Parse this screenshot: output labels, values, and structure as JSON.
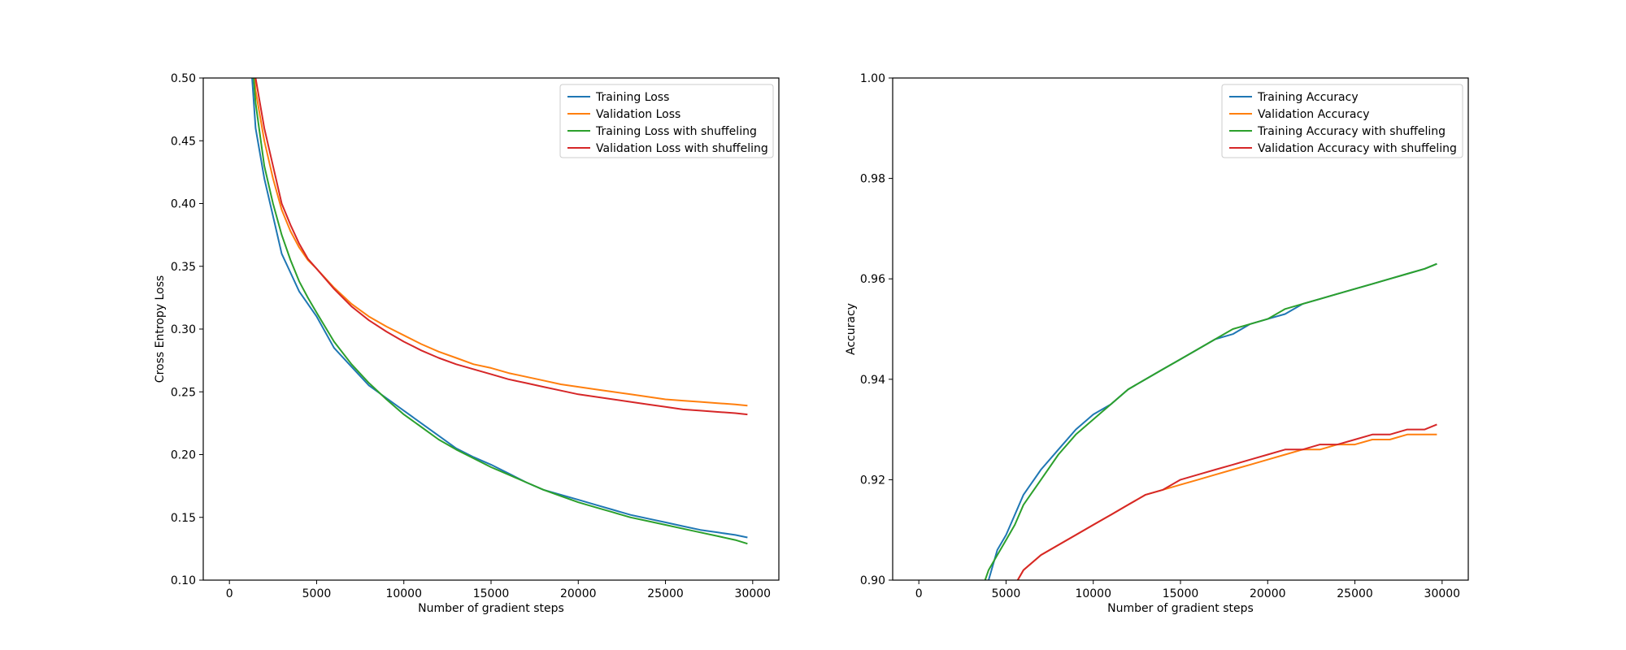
{
  "chart_data": [
    {
      "type": "line",
      "xlabel": "Number of gradient steps",
      "ylabel": "Cross Entropy Loss",
      "xlim": [
        -1500,
        31500
      ],
      "ylim": [
        0.1,
        0.5
      ],
      "xticks": [
        0,
        5000,
        10000,
        15000,
        20000,
        25000,
        30000
      ],
      "yticks": [
        0.1,
        0.15,
        0.2,
        0.25,
        0.3,
        0.35,
        0.4,
        0.45,
        0.5
      ],
      "legend_position": "top-right",
      "grid": false,
      "series": [
        {
          "name": "Training Loss",
          "color": "#1f77b4",
          "x": [
            1000,
            1500,
            2000,
            2500,
            3000,
            3500,
            4000,
            4500,
            5000,
            6000,
            7000,
            8000,
            9000,
            10000,
            11000,
            12000,
            13000,
            14000,
            15000,
            16000,
            17000,
            18000,
            19000,
            20000,
            21000,
            22000,
            23000,
            24000,
            25000,
            26000,
            27000,
            28000,
            29000,
            29700
          ],
          "y": [
            0.56,
            0.46,
            0.42,
            0.39,
            0.36,
            0.345,
            0.33,
            0.32,
            0.31,
            0.285,
            0.27,
            0.255,
            0.245,
            0.235,
            0.225,
            0.215,
            0.205,
            0.198,
            0.192,
            0.185,
            0.178,
            0.172,
            0.168,
            0.164,
            0.16,
            0.156,
            0.152,
            0.149,
            0.146,
            0.143,
            0.14,
            0.138,
            0.136,
            0.134
          ]
        },
        {
          "name": "Validation Loss",
          "color": "#ff7f0e",
          "x": [
            1000,
            1500,
            2000,
            2500,
            3000,
            3500,
            4000,
            4500,
            5000,
            6000,
            7000,
            8000,
            9000,
            10000,
            11000,
            12000,
            13000,
            14000,
            15000,
            16000,
            17000,
            18000,
            19000,
            20000,
            21000,
            22000,
            23000,
            24000,
            25000,
            26000,
            27000,
            28000,
            29000,
            29700
          ],
          "y": [
            0.58,
            0.49,
            0.45,
            0.42,
            0.395,
            0.378,
            0.365,
            0.355,
            0.348,
            0.333,
            0.32,
            0.31,
            0.302,
            0.295,
            0.288,
            0.282,
            0.277,
            0.272,
            0.269,
            0.265,
            0.262,
            0.259,
            0.256,
            0.254,
            0.252,
            0.25,
            0.248,
            0.246,
            0.244,
            0.243,
            0.242,
            0.241,
            0.24,
            0.239
          ]
        },
        {
          "name": "Training Loss with shuffeling",
          "color": "#2ca02c",
          "x": [
            1000,
            1500,
            2000,
            2500,
            3000,
            3500,
            4000,
            4500,
            5000,
            6000,
            7000,
            8000,
            9000,
            10000,
            11000,
            12000,
            13000,
            14000,
            15000,
            16000,
            17000,
            18000,
            19000,
            20000,
            21000,
            22000,
            23000,
            24000,
            25000,
            26000,
            27000,
            28000,
            29000,
            29700
          ],
          "y": [
            0.57,
            0.48,
            0.43,
            0.4,
            0.375,
            0.355,
            0.338,
            0.325,
            0.313,
            0.29,
            0.272,
            0.257,
            0.244,
            0.232,
            0.222,
            0.212,
            0.204,
            0.197,
            0.19,
            0.184,
            0.178,
            0.172,
            0.167,
            0.162,
            0.158,
            0.154,
            0.15,
            0.147,
            0.144,
            0.141,
            0.138,
            0.135,
            0.132,
            0.129
          ]
        },
        {
          "name": "Validation Loss with shuffeling",
          "color": "#d62728",
          "x": [
            1000,
            1500,
            2000,
            2500,
            3000,
            3500,
            4000,
            4500,
            5000,
            6000,
            7000,
            8000,
            9000,
            10000,
            11000,
            12000,
            13000,
            14000,
            15000,
            16000,
            17000,
            18000,
            19000,
            20000,
            21000,
            22000,
            23000,
            24000,
            25000,
            26000,
            27000,
            28000,
            29000,
            29700
          ],
          "y": [
            0.59,
            0.5,
            0.46,
            0.43,
            0.4,
            0.383,
            0.368,
            0.356,
            0.348,
            0.332,
            0.318,
            0.307,
            0.298,
            0.29,
            0.283,
            0.277,
            0.272,
            0.268,
            0.264,
            0.26,
            0.257,
            0.254,
            0.251,
            0.248,
            0.246,
            0.244,
            0.242,
            0.24,
            0.238,
            0.236,
            0.235,
            0.234,
            0.233,
            0.232
          ]
        }
      ]
    },
    {
      "type": "line",
      "xlabel": "Number of gradient steps",
      "ylabel": "Accuracy",
      "xlim": [
        -1500,
        31500
      ],
      "ylim": [
        0.9,
        1.0
      ],
      "xticks": [
        0,
        5000,
        10000,
        15000,
        20000,
        25000,
        30000
      ],
      "yticks": [
        0.9,
        0.92,
        0.94,
        0.96,
        0.98,
        1.0
      ],
      "legend_position": "top-right",
      "grid": false,
      "series": [
        {
          "name": "Training Accuracy",
          "color": "#1f77b4",
          "x": [
            3500,
            4000,
            4500,
            5000,
            5500,
            6000,
            7000,
            8000,
            9000,
            10000,
            11000,
            12000,
            13000,
            14000,
            15000,
            16000,
            17000,
            18000,
            19000,
            20000,
            21000,
            22000,
            23000,
            24000,
            25000,
            26000,
            27000,
            28000,
            29000,
            29700
          ],
          "y": [
            0.895,
            0.9,
            0.906,
            0.909,
            0.913,
            0.917,
            0.922,
            0.926,
            0.93,
            0.933,
            0.935,
            0.938,
            0.94,
            0.942,
            0.944,
            0.946,
            0.948,
            0.949,
            0.951,
            0.952,
            0.953,
            0.955,
            0.956,
            0.957,
            0.958,
            0.959,
            0.96,
            0.961,
            0.962,
            0.963
          ]
        },
        {
          "name": "Validation Accuracy",
          "color": "#ff7f0e",
          "x": [
            5500,
            6000,
            7000,
            8000,
            9000,
            10000,
            11000,
            12000,
            13000,
            14000,
            15000,
            16000,
            17000,
            18000,
            19000,
            20000,
            21000,
            22000,
            23000,
            24000,
            25000,
            26000,
            27000,
            28000,
            29000,
            29700
          ],
          "y": [
            0.899,
            0.902,
            0.905,
            0.907,
            0.909,
            0.911,
            0.913,
            0.915,
            0.917,
            0.918,
            0.919,
            0.92,
            0.921,
            0.922,
            0.923,
            0.924,
            0.925,
            0.926,
            0.926,
            0.927,
            0.927,
            0.928,
            0.928,
            0.929,
            0.929,
            0.929
          ]
        },
        {
          "name": "Training Accuracy with shuffeling",
          "color": "#2ca02c",
          "x": [
            3800,
            4000,
            4500,
            5000,
            5500,
            6000,
            7000,
            8000,
            9000,
            10000,
            11000,
            12000,
            13000,
            14000,
            15000,
            16000,
            17000,
            18000,
            19000,
            20000,
            21000,
            22000,
            23000,
            24000,
            25000,
            26000,
            27000,
            28000,
            29000,
            29700
          ],
          "y": [
            0.9,
            0.902,
            0.905,
            0.908,
            0.911,
            0.915,
            0.92,
            0.925,
            0.929,
            0.932,
            0.935,
            0.938,
            0.94,
            0.942,
            0.944,
            0.946,
            0.948,
            0.95,
            0.951,
            0.952,
            0.954,
            0.955,
            0.956,
            0.957,
            0.958,
            0.959,
            0.96,
            0.961,
            0.962,
            0.963
          ]
        },
        {
          "name": "Validation Accuracy with shuffeling",
          "color": "#d62728",
          "x": [
            5500,
            6000,
            7000,
            8000,
            9000,
            10000,
            11000,
            12000,
            13000,
            14000,
            15000,
            16000,
            17000,
            18000,
            19000,
            20000,
            21000,
            22000,
            23000,
            24000,
            25000,
            26000,
            27000,
            28000,
            29000,
            29700
          ],
          "y": [
            0.899,
            0.902,
            0.905,
            0.907,
            0.909,
            0.911,
            0.913,
            0.915,
            0.917,
            0.918,
            0.92,
            0.921,
            0.922,
            0.923,
            0.924,
            0.925,
            0.926,
            0.926,
            0.927,
            0.927,
            0.928,
            0.929,
            0.929,
            0.93,
            0.93,
            0.931
          ]
        }
      ]
    }
  ]
}
